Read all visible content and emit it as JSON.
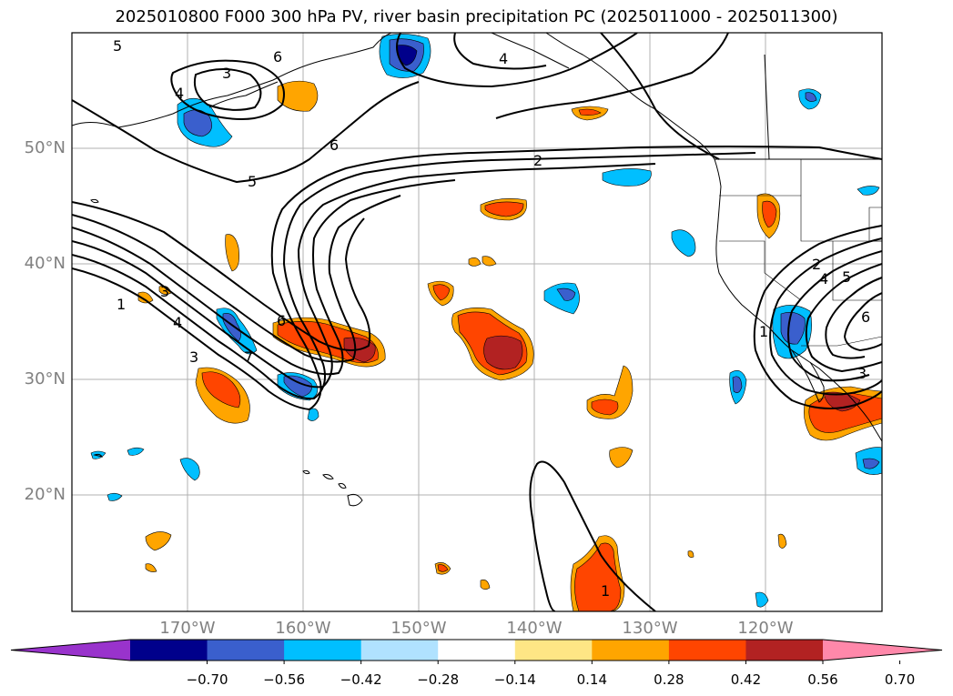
{
  "title": "2025010800 F000 300 hPa PV, river basin precipitation PC (2025011000 - 2025011300)",
  "map": {
    "lat_labels": [
      "50°N",
      "40°N",
      "30°N",
      "20°N"
    ],
    "lon_labels": [
      "170°W",
      "160°W",
      "150°W",
      "140°W",
      "130°W",
      "120°W"
    ],
    "contour_labels": [
      "5",
      "6",
      "3",
      "4",
      "4",
      "6",
      "2",
      "5",
      "1",
      "3",
      "4",
      "3",
      "7",
      "6",
      "1",
      "2",
      "4",
      "5",
      "6",
      "3",
      "1"
    ],
    "grid": true
  },
  "colorbar": {
    "ticks": [
      "−0.70",
      "−0.56",
      "−0.42",
      "−0.28",
      "−0.14",
      "0.14",
      "0.28",
      "0.42",
      "0.56",
      "0.70"
    ],
    "colors": [
      "#9933cc",
      "#00008b",
      "#3a5fcd",
      "#00bfff",
      "#b0e2ff",
      "#ffffff",
      "#fee685",
      "#ffa500",
      "#ff4500",
      "#b22222",
      "#ff88aa"
    ]
  },
  "colors": {
    "coast": "#000000",
    "contour": "#000000",
    "grid": "#b0b0b0"
  }
}
